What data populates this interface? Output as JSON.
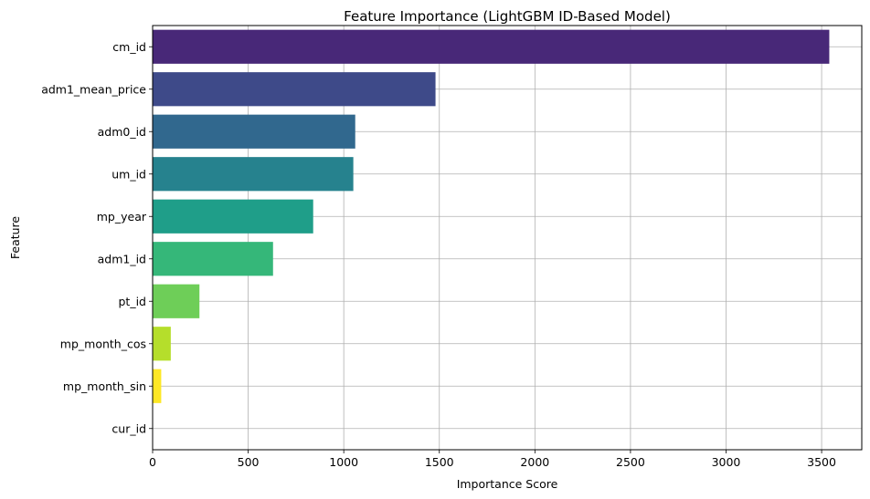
{
  "chart_data": {
    "type": "bar",
    "orientation": "horizontal",
    "title": "Feature Importance (LightGBM ID-Based Model)",
    "xlabel": "Importance Score",
    "ylabel": "Feature",
    "categories": [
      "cm_id",
      "adm1_mean_price",
      "adm0_id",
      "um_id",
      "mp_year",
      "adm1_id",
      "pt_id",
      "mp_month_cos",
      "mp_month_sin",
      "cur_id"
    ],
    "values": [
      3540,
      1480,
      1060,
      1050,
      840,
      630,
      245,
      95,
      45,
      0
    ],
    "colors": [
      "#482878",
      "#3e4a89",
      "#31688e",
      "#26828e",
      "#1f9e89",
      "#35b779",
      "#6ece58",
      "#b5de2b",
      "#fde725",
      "#fde725"
    ],
    "xlim": [
      0,
      3710
    ],
    "xticks": [
      0,
      500,
      1000,
      1500,
      2000,
      2500,
      3000,
      3500
    ],
    "grid": true,
    "colormap": "viridis"
  }
}
